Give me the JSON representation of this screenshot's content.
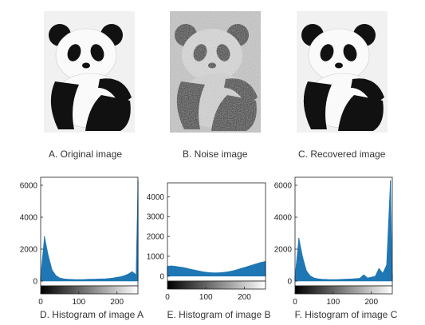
{
  "images": [
    {
      "caption": "A. Original image",
      "icon": "panda-icon",
      "variant": "clean"
    },
    {
      "caption": "B. Noise image",
      "icon": "panda-icon",
      "variant": "noisy"
    },
    {
      "caption": "C. Recovered image",
      "icon": "panda-icon",
      "variant": "clean"
    }
  ],
  "colors": {
    "bar": "#1f77b4",
    "axis": "#222222"
  },
  "chart_data": [
    {
      "type": "bar",
      "title": "D. Histogram of image A",
      "xlim": [
        0,
        255
      ],
      "ylim": [
        -300,
        6500
      ],
      "xticks": [
        0,
        100,
        200
      ],
      "yticks": [
        0,
        2000,
        4000,
        6000
      ],
      "x": [
        0,
        10,
        20,
        30,
        40,
        50,
        60,
        70,
        80,
        90,
        100,
        110,
        120,
        130,
        140,
        150,
        160,
        170,
        180,
        190,
        200,
        210,
        220,
        230,
        240,
        250,
        255
      ],
      "values": [
        300,
        2800,
        1600,
        700,
        350,
        200,
        150,
        120,
        110,
        100,
        100,
        100,
        110,
        120,
        120,
        130,
        140,
        150,
        170,
        200,
        240,
        280,
        350,
        450,
        600,
        400,
        6300
      ]
    },
    {
      "type": "bar",
      "title": "E. Histogram of image B",
      "xlim": [
        0,
        255
      ],
      "ylim": [
        -250,
        4700
      ],
      "xticks": [
        0,
        100,
        200
      ],
      "yticks": [
        0,
        1000,
        2000,
        3000,
        4000
      ],
      "x": [
        0,
        10,
        20,
        30,
        40,
        50,
        60,
        70,
        80,
        90,
        100,
        110,
        120,
        130,
        140,
        150,
        160,
        170,
        180,
        190,
        200,
        210,
        220,
        230,
        240,
        250,
        255
      ],
      "values": [
        500,
        520,
        500,
        470,
        440,
        400,
        350,
        310,
        270,
        230,
        200,
        180,
        170,
        170,
        180,
        200,
        230,
        270,
        320,
        380,
        440,
        500,
        560,
        620,
        680,
        720,
        750
      ]
    },
    {
      "type": "bar",
      "title": "F. Histogram of image C",
      "xlim": [
        0,
        255
      ],
      "ylim": [
        -300,
        6500
      ],
      "xticks": [
        0,
        100,
        200
      ],
      "yticks": [
        0,
        2000,
        4000,
        6000
      ],
      "x": [
        0,
        10,
        20,
        30,
        40,
        50,
        60,
        70,
        80,
        90,
        100,
        110,
        120,
        130,
        140,
        150,
        160,
        170,
        180,
        190,
        200,
        210,
        220,
        230,
        240,
        250,
        255
      ],
      "values": [
        300,
        2700,
        1500,
        650,
        330,
        200,
        150,
        120,
        110,
        100,
        100,
        100,
        110,
        120,
        130,
        140,
        160,
        180,
        400,
        200,
        250,
        300,
        800,
        500,
        1000,
        6300,
        450
      ]
    }
  ]
}
